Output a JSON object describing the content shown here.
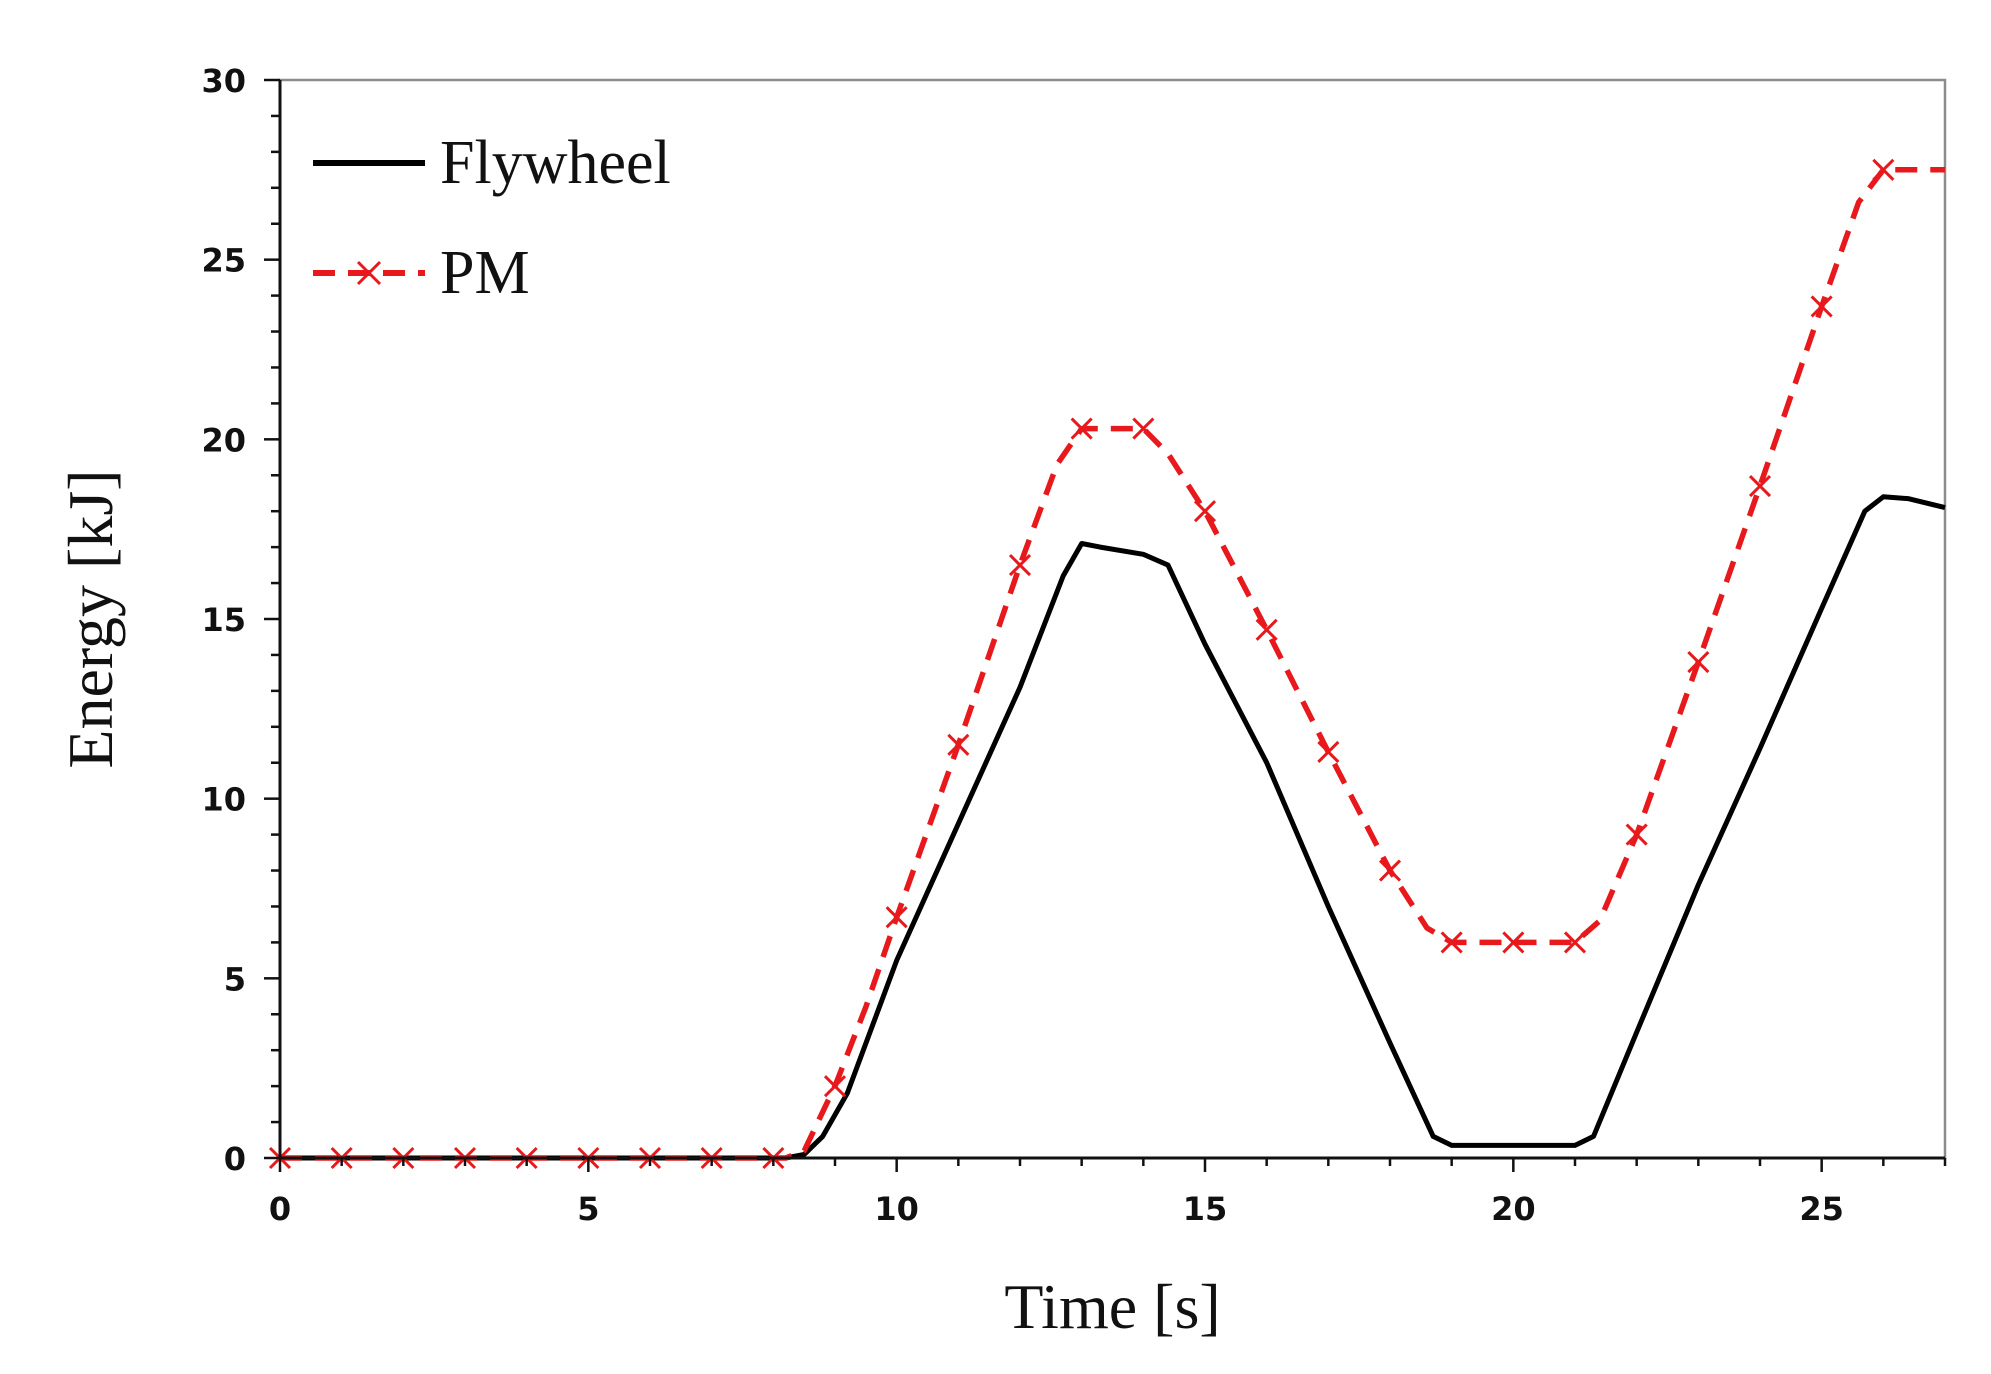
{
  "chart_data": {
    "type": "line",
    "title": "",
    "xlabel": "Time [s]",
    "ylabel": "Energy [kJ]",
    "xlim": [
      0,
      27
    ],
    "ylim": [
      0,
      30
    ],
    "xticks": [
      0,
      5,
      10,
      15,
      20,
      25
    ],
    "yticks": [
      0,
      5,
      10,
      15,
      20,
      25,
      30
    ],
    "grid": false,
    "legend_position": "top-left",
    "series": [
      {
        "name": "Flywheel",
        "color": "#000000",
        "style": "solid",
        "marker": "none",
        "x": [
          0,
          8.2,
          8.5,
          8.8,
          9.2,
          10,
          11,
          12,
          12.7,
          13.0,
          13.3,
          14.0,
          14.4,
          15,
          16,
          17,
          18,
          18.7,
          19.0,
          20.0,
          21.0,
          21.3,
          22,
          23,
          24,
          25,
          25.7,
          26.0,
          26.4,
          27.0
        ],
        "y": [
          0,
          0,
          0.1,
          0.6,
          1.8,
          5.5,
          9.3,
          13.1,
          16.2,
          17.1,
          17.0,
          16.8,
          16.5,
          14.3,
          11.0,
          7.0,
          3.2,
          0.6,
          0.35,
          0.35,
          0.35,
          0.6,
          3.5,
          7.6,
          11.4,
          15.3,
          18.0,
          18.4,
          18.35,
          18.1
        ]
      },
      {
        "name": "PM",
        "color": "#e8191c",
        "style": "dashed",
        "marker": "x",
        "x": [
          0,
          8.2,
          8.5,
          9.0,
          9.5,
          10,
          11,
          12,
          12.6,
          13.0,
          14.0,
          14.4,
          15,
          16,
          17,
          18,
          18.6,
          19.0,
          20.0,
          21.0,
          21.4,
          22,
          23,
          24,
          25,
          25.6,
          26.0,
          27.0
        ],
        "y": [
          0,
          0,
          0.2,
          2.0,
          4.2,
          6.7,
          11.5,
          16.5,
          19.3,
          20.3,
          20.3,
          19.6,
          18.0,
          14.7,
          11.3,
          8.0,
          6.4,
          6.0,
          6.0,
          6.0,
          6.6,
          9.0,
          13.8,
          18.7,
          23.7,
          26.6,
          27.5,
          27.5
        ],
        "marker_x": [
          0,
          1,
          2,
          3,
          4,
          5,
          6,
          7,
          8,
          9,
          10,
          11,
          12,
          13,
          14,
          15,
          16,
          17,
          18,
          19,
          20,
          21,
          22,
          23,
          24,
          25,
          26
        ],
        "marker_y": [
          0,
          0,
          0,
          0,
          0,
          0,
          0,
          0,
          0,
          2.0,
          6.7,
          11.5,
          16.5,
          20.3,
          20.3,
          18.0,
          14.7,
          11.3,
          8.0,
          6.0,
          6.0,
          6.0,
          9.0,
          13.8,
          18.7,
          23.7,
          27.5
        ]
      }
    ]
  }
}
